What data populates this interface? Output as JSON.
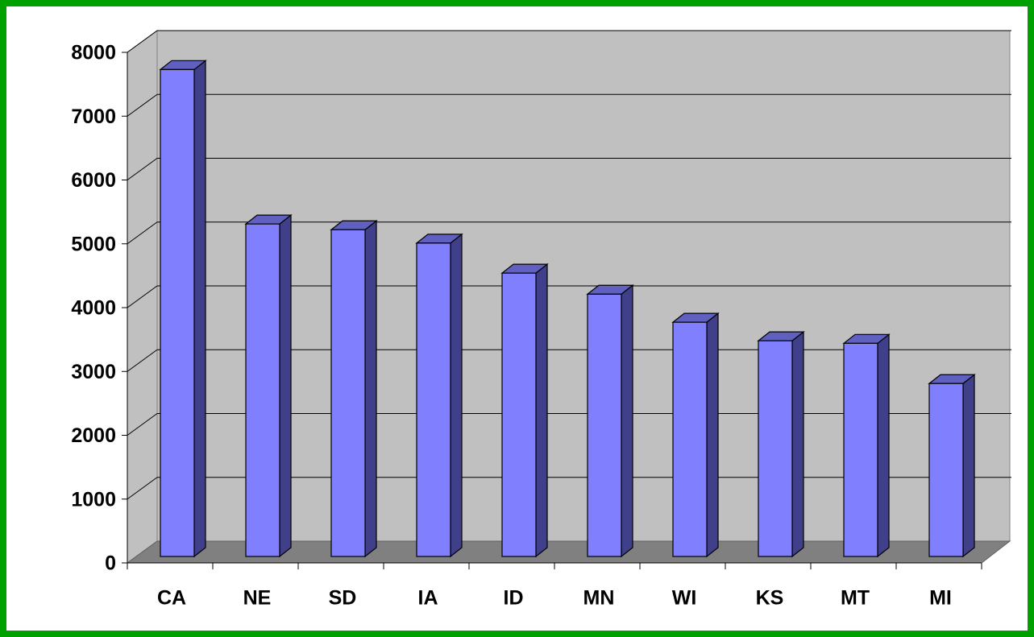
{
  "chart_data": {
    "type": "bar3d",
    "categories": [
      "CA",
      "NE",
      "SD",
      "IA",
      "ID",
      "MN",
      "WI",
      "KS",
      "MT",
      "MI"
    ],
    "values": [
      7630,
      5210,
      5120,
      4910,
      4440,
      4110,
      3670,
      3380,
      3340,
      2710
    ],
    "color": "#8080ff",
    "ylim": [
      0,
      8000
    ],
    "yticks": [
      0,
      1000,
      2000,
      3000,
      4000,
      5000,
      6000,
      7000,
      8000
    ],
    "grid": true
  }
}
